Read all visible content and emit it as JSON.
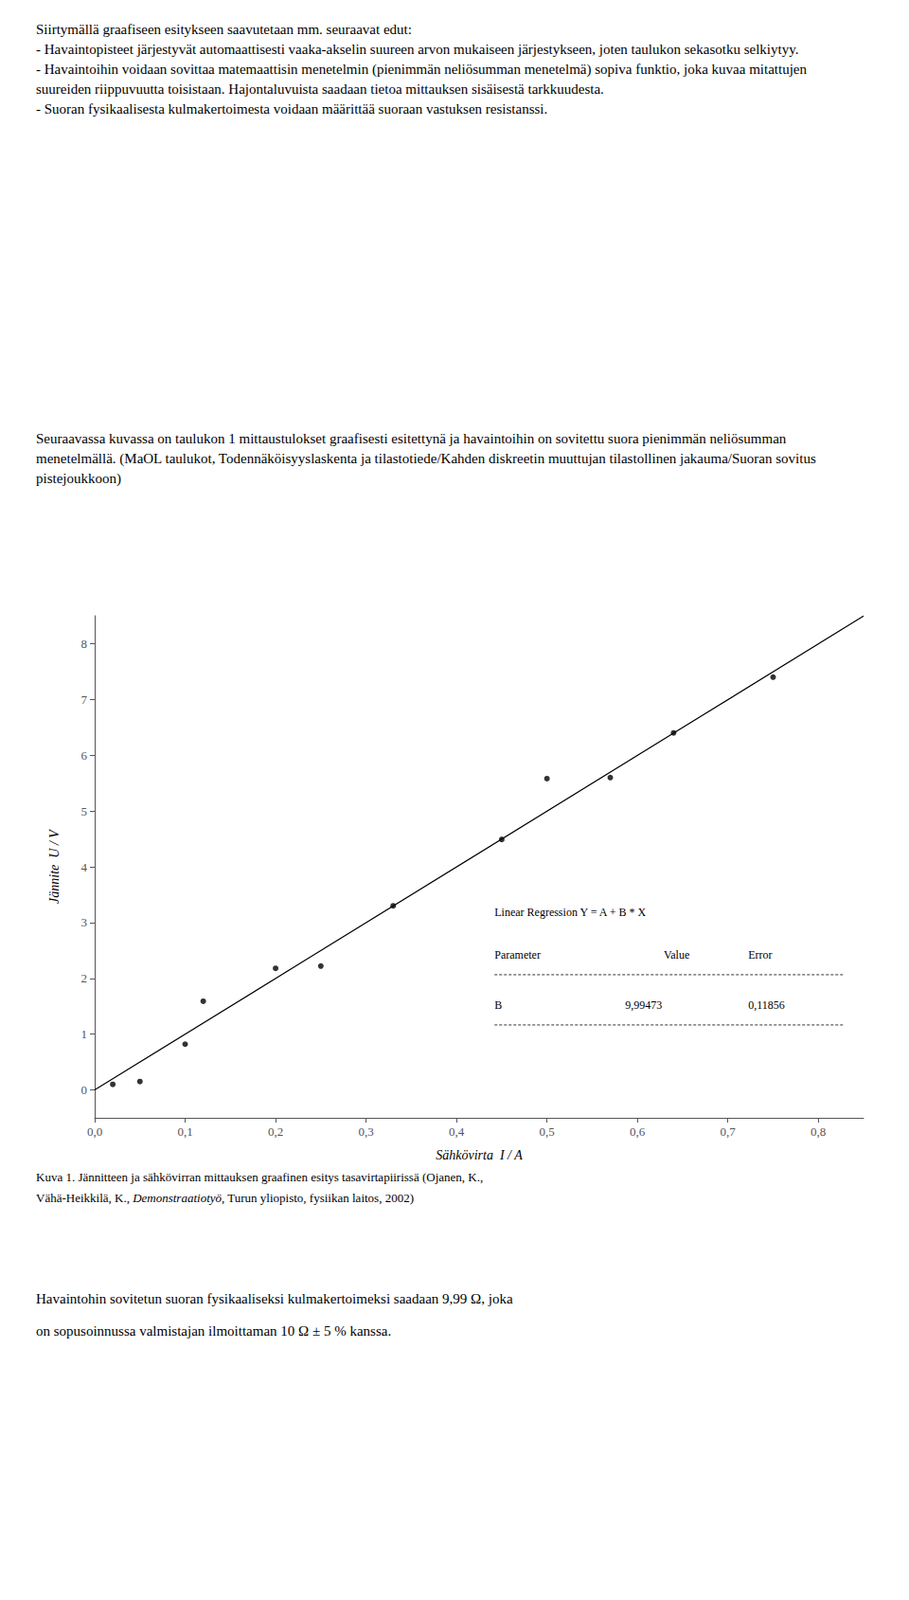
{
  "chart_data": {
    "type": "scatter",
    "texts_above": [
      "Siirtymällä graafiseen esitykseen saavutetaan mm. seuraavat edut:\n- Havaintopisteet järjestyvät automaattisesti vaaka-akselin suureen arvon mukaiseen järjestykseen, joten taulukon sekasotku selkiytyy.\n- Havaintoihin voidaan sovittaa matemaattisin menetelmin (pienimmän neliösumman menetelmä) sopiva funktio, joka kuvaa mitattujen suureiden riippuvuutta toisistaan. Hajontaluvuista saadaan tietoa mittauksen sisäisestä tarkkuudesta.\n- Suoran fysikaalisesta kulmakertoimesta voidaan määrittää suoraan vastuksen resistanssi.",
      "Seuraavassa kuvassa on taulukon 1 mittaustulokset graafisesti esitettynä ja havaintoihin on sovitettu suora pienimmän neliösumman menetelmällä. (MaOL taulukot, Todennäköisyyslaskenta ja tilastotiede/Kahden diskreetin muuttujan tilastollinen jakauma/Suoran sovitus pistejoukkoon)"
    ],
    "xlabel": "Sähkövirta  I / A",
    "ylabel": "Jännite  U / V",
    "series": [
      {
        "type": "scatter",
        "color": "#000000",
        "marker": "circle",
        "x": [
          0.02,
          0.05,
          0.1,
          0.12,
          0.2,
          0.25,
          0.33,
          0.45,
          0.5,
          0.57,
          0.64,
          0.75
        ],
        "values": [
          0.1,
          0.15,
          0.82,
          1.59,
          2.18,
          2.22,
          3.3,
          4.49,
          5.58,
          5.6,
          6.4,
          7.4
        ]
      },
      {
        "type": "line",
        "color": "#000000",
        "line_style": "solid",
        "x": [
          0.0,
          0.85
        ],
        "values": [
          0.0,
          8.4955205
        ]
      }
    ],
    "xlim": [
      0.0,
      0.85
    ],
    "ylim": [
      -0.5,
      8.5
    ],
    "xticks": [
      {
        "value": 0.0,
        "label": "0,0"
      },
      {
        "value": 0.1,
        "label": "0,1"
      },
      {
        "value": 0.2,
        "label": "0,2"
      },
      {
        "value": 0.3,
        "label": "0,3"
      },
      {
        "value": 0.4,
        "label": "0,4"
      },
      {
        "value": 0.5,
        "label": "0,5"
      },
      {
        "value": 0.6,
        "label": "0,6"
      },
      {
        "value": 0.7,
        "label": "0,7"
      },
      {
        "value": 0.8,
        "label": "0,8"
      }
    ],
    "yticks": [
      0,
      1,
      2,
      3,
      4,
      5,
      6,
      7,
      8
    ],
    "grid": false,
    "regression_table": {
      "title": "Linear Regression Y = A + B * X",
      "columns": [
        "Parameter",
        "Value",
        "Error"
      ],
      "rows": [
        [
          "B",
          "9,99473",
          "0,11856"
        ]
      ]
    },
    "caption": [
      [
        "Kuva 1. Jännitteen ja sähkövirran mittauksen graafinen esitys tasavirtapiirissä (Ojanen, K.,"
      ],
      [
        "Vähä-Heikkilä, K., ",
        {
          "italic": "Demonstraatiotyö"
        },
        ", Turun yliopisto, fysiikan laitos, 2002)"
      ]
    ],
    "texts_below": [
      "Havaintohin sovitetun suoran fysikaaliseksi kulmakertoimeksi saadaan 9,99 Ω, joka",
      "on sopusoinnussa valmistajan ilmoittaman 10 Ω ± 5 % kanssa."
    ]
  }
}
